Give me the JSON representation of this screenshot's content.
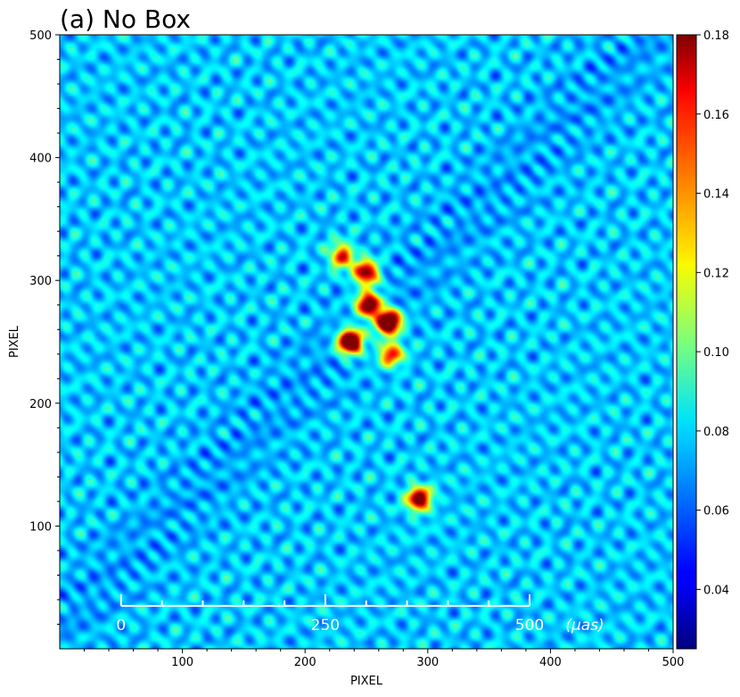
{
  "chart_data": {
    "type": "heatmap",
    "title": "(a) No Box",
    "xlabel": "PIXEL",
    "ylabel": "PIXEL",
    "xlim": [
      0,
      500
    ],
    "ylim": [
      0,
      500
    ],
    "x_ticks": [
      100,
      200,
      300,
      400,
      500
    ],
    "y_ticks": [
      100,
      200,
      300,
      400,
      500
    ],
    "colormap": "jet",
    "colorbar": {
      "range": [
        0.025,
        0.18
      ],
      "ticks": [
        0.04,
        0.06,
        0.08,
        0.1,
        0.12,
        0.14,
        0.16,
        0.18
      ],
      "tick_labels": [
        "0.04",
        "0.06",
        "0.08",
        "0.10",
        "0.12",
        "0.14",
        "0.16",
        "0.18"
      ]
    },
    "background_level": 0.075,
    "bright_features": [
      {
        "x": 237,
        "y": 250,
        "value": 0.18
      },
      {
        "x": 268,
        "y": 266,
        "value": 0.18
      },
      {
        "x": 252,
        "y": 280,
        "value": 0.16
      },
      {
        "x": 250,
        "y": 306,
        "value": 0.15
      },
      {
        "x": 230,
        "y": 320,
        "value": 0.13
      },
      {
        "x": 293,
        "y": 122,
        "value": 0.15
      },
      {
        "x": 270,
        "y": 240,
        "value": 0.13
      }
    ],
    "scale_bar": {
      "labels": [
        "0",
        "250",
        "500"
      ],
      "unit": "(μas)"
    }
  }
}
